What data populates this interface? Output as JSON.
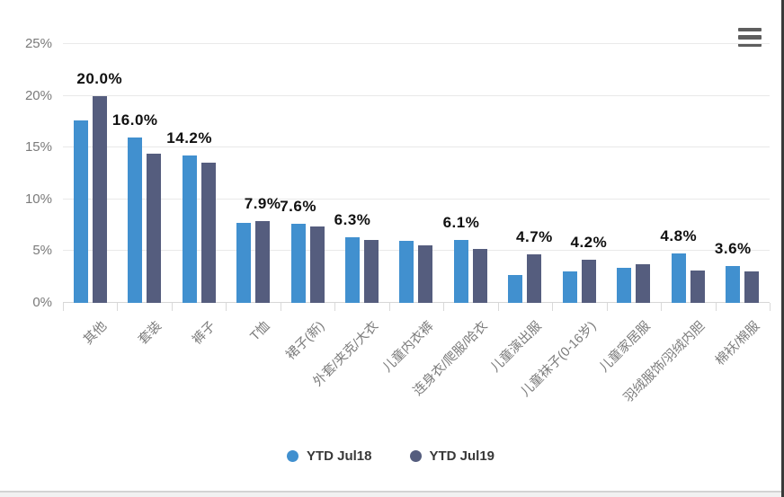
{
  "toolbar": {
    "menu_icon": "hamburger-menu-icon"
  },
  "colors": {
    "series_jul18": "#4190CF",
    "series_jul19": "#555D7E",
    "gridline": "#e9e9e9",
    "axis_text": "#7a7a7a",
    "data_label_text": "#101010",
    "legend_text": "#383838"
  },
  "chart_data": {
    "type": "bar",
    "title": "",
    "categories": [
      "其他",
      "套装",
      "裤子",
      "T恤",
      "裙子(新)",
      "外套/夹克/大衣",
      "儿童内衣裤",
      "连身衣/爬服/哈衣",
      "儿童演出服",
      "儿童袜子(0-16岁)",
      "儿童家居服",
      "羽绒服饰/羽绒内胆",
      "棉袄/棉服"
    ],
    "series": [
      {
        "name": "YTD Jul18",
        "color": "#4190CF",
        "values": [
          17.6,
          16.0,
          14.2,
          7.7,
          7.6,
          6.3,
          6.0,
          6.1,
          2.7,
          3.0,
          3.4,
          4.8,
          3.6
        ]
      },
      {
        "name": "YTD Jul19",
        "color": "#555D7E",
        "values": [
          20.0,
          14.4,
          13.5,
          7.9,
          7.4,
          6.1,
          5.6,
          5.2,
          4.7,
          4.2,
          3.7,
          3.1,
          3.0
        ]
      }
    ],
    "data_labels": [
      {
        "group": 0,
        "series": 1,
        "text": "20.0%"
      },
      {
        "group": 1,
        "series": 0,
        "text": "16.0%"
      },
      {
        "group": 2,
        "series": 0,
        "text": "14.2%"
      },
      {
        "group": 3,
        "series": 1,
        "text": "7.9%"
      },
      {
        "group": 4,
        "series": 0,
        "text": "7.6%"
      },
      {
        "group": 5,
        "series": 0,
        "text": "6.3%"
      },
      {
        "group": 7,
        "series": 0,
        "text": "6.1%"
      },
      {
        "group": 8,
        "series": 1,
        "text": "4.7%"
      },
      {
        "group": 9,
        "series": 1,
        "text": "4.2%"
      },
      {
        "group": 11,
        "series": 0,
        "text": "4.8%"
      },
      {
        "group": 12,
        "series": 0,
        "text": "3.6%"
      }
    ],
    "y_ticks": [
      "0%",
      "5%",
      "10%",
      "15%",
      "20%",
      "25%"
    ],
    "ylim": [
      0,
      25
    ],
    "grid": true,
    "legend_position": "bottom"
  }
}
